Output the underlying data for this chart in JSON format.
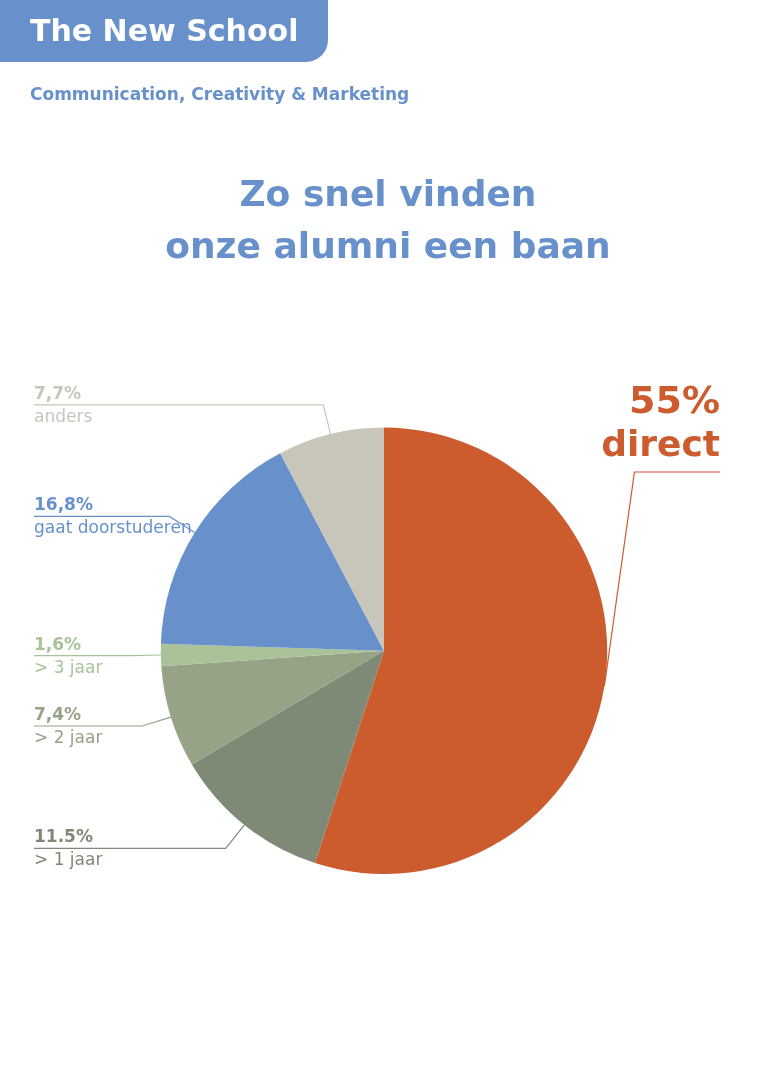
{
  "chart_data": {
    "type": "pie",
    "title": "Zo snel vinden\nonze alumni een baan",
    "subtitle": "Communication, Creativity & Marketing",
    "annotations": [
      "The New School"
    ],
    "categories": [
      "direct",
      "> 1 jaar",
      "> 2 jaar",
      "> 3 jaar",
      "gaat doorstuderen",
      "anders"
    ],
    "values": [
      55,
      11.5,
      7.4,
      1.6,
      16.8,
      7.7
    ],
    "colors": [
      "#cc5b2d",
      "#7f8a76",
      "#97a386",
      "#a9c299",
      "#6891cc",
      "#c8c6bb"
    ],
    "value_labels": [
      "55%",
      "11.5%",
      "7,4%",
      "1,6%",
      "16,8%",
      "7,7%"
    ],
    "legend": false
  }
}
